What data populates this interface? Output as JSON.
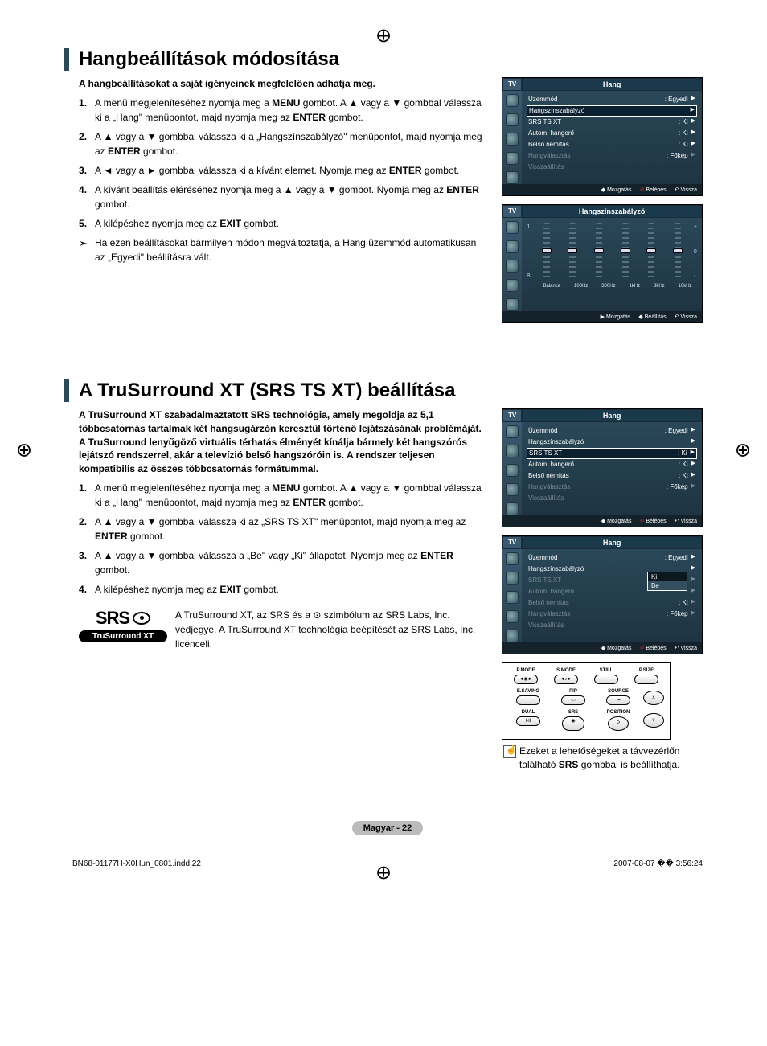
{
  "section1": {
    "title": "Hangbeállítások módosítása",
    "intro": "A hangbeállításokat a saját igényeinek megfelelően adhatja meg.",
    "steps": [
      "A menü megjelenítéséhez nyomja meg a <b>MENU</b> gombot. A ▲ vagy a ▼ gombbal válassza ki a „Hang\" menüpontot, majd nyomja meg az <b>ENTER</b> gombot.",
      "A ▲ vagy a ▼ gombbal válassza ki a „Hangszínszabályzó\" menüpontot, majd nyomja meg az <b>ENTER</b> gombot.",
      "A ◄ vagy a ► gombbal válassza ki a kívánt elemet. Nyomja meg az <b>ENTER</b> gombot.",
      "A kívánt beállítás eléréséhez nyomja meg a ▲ vagy a ▼ gombot. Nyomja meg az <b>ENTER</b> gombot.",
      "A kilépéshez nyomja meg az <b>EXIT</b> gombot."
    ],
    "note": "Ha ezen beállításokat bármilyen módon megváltoztatja, a Hang üzemmód automatikusan az „Egyedi\" beállításra vált."
  },
  "section2": {
    "title": "A TruSurround XT (SRS TS XT) beállítása",
    "intro": "A TruSurround XT szabadalmaztatott SRS technológia, amely megoldja az 5,1 többcsatornás tartalmak két hangsugárzón keresztül történő lejátszásának problémáját. A TruSurround lenyűgöző virtuális térhatás élményét kínálja bármely két hangszórós lejátszó rendszerrel, akár a televízió belső hangszóróin is. A rendszer teljesen kompatibilis az összes többcsatornás formátummal.",
    "steps": [
      "A menü megjelenítéséhez nyomja meg a <b>MENU</b> gombot. A ▲ vagy a ▼ gombbal válassza ki a „Hang\" menüpontot, majd nyomja meg az <b>ENTER</b> gombot.",
      "A ▲ vagy a ▼ gombbal válassza ki az „SRS TS XT\" menüpontot, majd nyomja meg az <b>ENTER</b> gombot.",
      "A ▲ vagy a ▼ gombbal válassza a „Be\" vagy „Ki\" állapotot. Nyomja meg az <b>ENTER</b> gombot.",
      "A kilépéshez nyomja meg az <b>EXIT</b> gombot."
    ],
    "srs_note": "A TruSurround XT, az SRS és a ⊙ szimbólum az SRS Labs, Inc. védjegye. A TruSurround XT technológia beépítését az SRS Labs, Inc. licenceli.",
    "srs_logo_top": "SRS",
    "srs_logo_bottom": "TruSurround XT"
  },
  "tv_menu": {
    "tab": "TV",
    "title_sound": "Hang",
    "title_eq": "Hangszínszabályzó",
    "rows": [
      {
        "label": "Üzemmód",
        "val": ": Egyedi",
        "arrow": true
      },
      {
        "label": "Hangszínszabályzó",
        "val": "",
        "arrow": true,
        "hl": true
      },
      {
        "label": "SRS TS XT",
        "val": ": Ki",
        "arrow": true
      },
      {
        "label": "Autom. hangerő",
        "val": ": Ki",
        "arrow": true
      },
      {
        "label": "Belső némítás",
        "val": ": Ki",
        "arrow": true
      },
      {
        "label": "Hangválasztás",
        "val": ": Főkép",
        "arrow": true,
        "dim": true
      },
      {
        "label": "Visszaállítás",
        "val": "",
        "arrow": false,
        "dim": true
      }
    ],
    "rows_srs_hl": [
      {
        "label": "Üzemmód",
        "val": ": Egyedi",
        "arrow": true
      },
      {
        "label": "Hangszínszabályzó",
        "val": "",
        "arrow": true
      },
      {
        "label": "SRS TS XT",
        "val": ": Ki",
        "arrow": true,
        "hl": true
      },
      {
        "label": "Autom. hangerő",
        "val": ": Ki",
        "arrow": true
      },
      {
        "label": "Belső némítás",
        "val": ": Ki",
        "arrow": true
      },
      {
        "label": "Hangválasztás",
        "val": ": Főkép",
        "arrow": true,
        "dim": true
      },
      {
        "label": "Visszaállítás",
        "val": "",
        "arrow": false,
        "dim": true
      }
    ],
    "rows_srs_drop": [
      {
        "label": "Üzemmód",
        "val": ": Egyedi",
        "arrow": true
      },
      {
        "label": "Hangszínszabályzó",
        "val": "",
        "arrow": true
      },
      {
        "label": "SRS TS XT",
        "val": ":",
        "arrow": true,
        "dim": true
      },
      {
        "label": "Autom. hangerő",
        "val": ":",
        "arrow": true,
        "dim": true
      },
      {
        "label": "Belső némítás",
        "val": ": Ki",
        "arrow": true,
        "dim": true
      },
      {
        "label": "Hangválasztás",
        "val": ": Főkép",
        "arrow": true,
        "dim": true
      },
      {
        "label": "Visszaállítás",
        "val": "",
        "arrow": false,
        "dim": true
      }
    ],
    "dropdown": {
      "options": [
        "Ki",
        "Be"
      ],
      "selected": 1
    },
    "footer": {
      "move": "Mozgatás",
      "enter": "Belépés",
      "back": "Vissza",
      "adjust": "Beállítás"
    }
  },
  "equalizer": {
    "ylabels": [
      "J",
      "",
      "B"
    ],
    "scale": [
      "+",
      "0",
      "-"
    ],
    "bands": [
      "Balance",
      "100Hz",
      "300Hz",
      "1kHz",
      "3kHz",
      "10kHz"
    ],
    "positions": [
      50,
      50,
      50,
      50,
      50,
      50
    ]
  },
  "remote": {
    "row1": [
      "P.MODE",
      "S.MODE",
      "STILL",
      "P.SIZE"
    ],
    "row2": [
      "E.SAVING",
      "PIP",
      "SOURCE",
      ""
    ],
    "row3": [
      "DUAL",
      "SRS",
      "POSITION",
      "P"
    ],
    "chan": [
      "∧",
      "∨"
    ]
  },
  "hint": "Ezeket a lehetőségeket a távvezérlőn található <b>SRS</b> gombbal is beállíthatja.",
  "page_number": "Magyar - 22",
  "print_footer": {
    "left": "BN68-01177H-X0Hun_0801.indd   22",
    "right": "2007-08-07   �� 3:56:24"
  }
}
